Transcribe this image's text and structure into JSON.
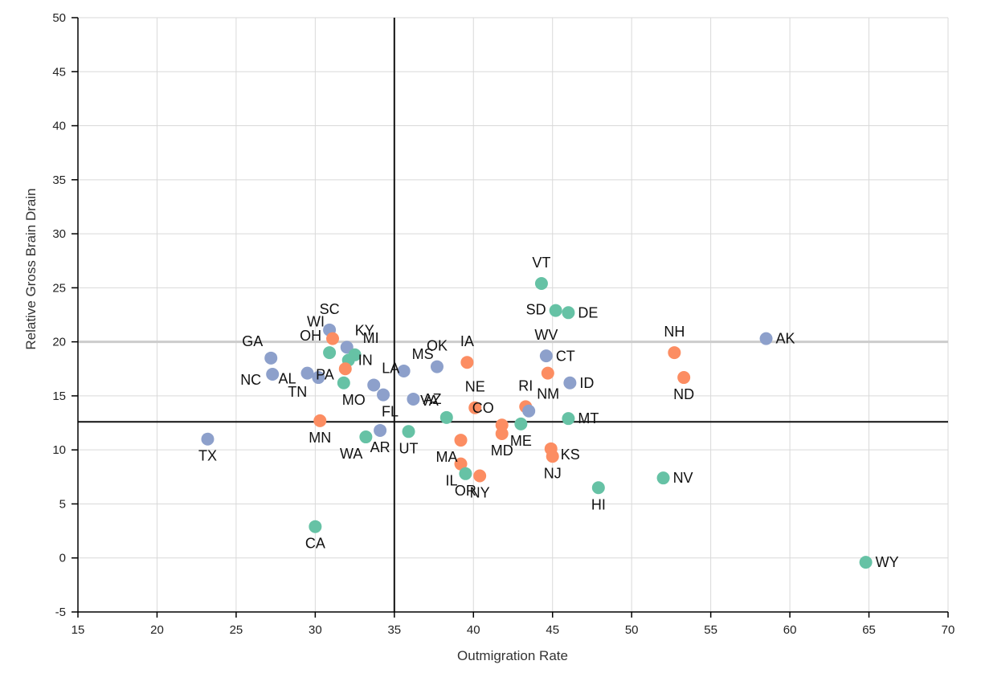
{
  "chart_data": {
    "type": "scatter",
    "xlabel": "Outmigration Rate",
    "ylabel": "Relative Gross Brain Drain",
    "xlim": [
      15,
      70
    ],
    "ylim": [
      -5,
      50
    ],
    "x_ticks": [
      15,
      20,
      25,
      30,
      35,
      40,
      45,
      50,
      55,
      60,
      65,
      70
    ],
    "y_ticks": [
      -5,
      0,
      5,
      10,
      15,
      20,
      25,
      30,
      35,
      40,
      45,
      50
    ],
    "grid": true,
    "reference_lines": {
      "x": 35,
      "y": 12.6,
      "highlight_y": 20
    },
    "group_colors": {
      "blue": "#8da0cb",
      "orange": "#fc8d62",
      "green": "#66c2a5"
    },
    "points": [
      {
        "label": "TX",
        "x": 23.2,
        "y": 11.0,
        "group": "blue",
        "label_pos": "below"
      },
      {
        "label": "GA",
        "x": 27.2,
        "y": 18.5,
        "group": "blue",
        "label_pos": "upper-left"
      },
      {
        "label": "NC",
        "x": 27.3,
        "y": 17.0,
        "group": "blue",
        "label_pos": "lower-left"
      },
      {
        "label": "AL",
        "x": 29.5,
        "y": 17.1,
        "group": "blue",
        "label_pos": "lower-left"
      },
      {
        "label": "TN",
        "x": 30.2,
        "y": 16.7,
        "group": "blue",
        "label_pos": "lower-left-far"
      },
      {
        "label": "SC",
        "x": 30.9,
        "y": 21.1,
        "group": "blue",
        "label_pos": "above"
      },
      {
        "label": "WI",
        "x": 31.1,
        "y": 20.3,
        "group": "orange",
        "label_pos": "upper-left"
      },
      {
        "label": "KY",
        "x": 32.0,
        "y": 19.5,
        "group": "blue",
        "label_pos": "upper-right"
      },
      {
        "label": "MI",
        "x": 32.5,
        "y": 18.8,
        "group": "green",
        "label_pos": "upper-right"
      },
      {
        "label": "OH",
        "x": 30.9,
        "y": 19.0,
        "group": "green",
        "label_pos": "upper-left"
      },
      {
        "label": "IN",
        "x": 32.1,
        "y": 18.3,
        "group": "green",
        "label_pos": "right"
      },
      {
        "label": "PA",
        "x": 31.9,
        "y": 17.5,
        "group": "orange",
        "label_pos": "lower-left"
      },
      {
        "label": "MO",
        "x": 31.8,
        "y": 16.2,
        "group": "green",
        "label_pos": "below-right"
      },
      {
        "label": "MN",
        "x": 30.3,
        "y": 12.7,
        "group": "orange",
        "label_pos": "below"
      },
      {
        "label": "LA",
        "x": 33.7,
        "y": 16.0,
        "group": "blue",
        "label_pos": "upper-right"
      },
      {
        "label": "FL",
        "x": 34.3,
        "y": 15.1,
        "group": "blue",
        "label_pos": "below-right"
      },
      {
        "label": "MS",
        "x": 35.6,
        "y": 17.3,
        "group": "blue",
        "label_pos": "upper-right"
      },
      {
        "label": "OK",
        "x": 37.7,
        "y": 17.7,
        "group": "blue",
        "label_pos": "above"
      },
      {
        "label": "AZ",
        "x": 36.2,
        "y": 14.7,
        "group": "blue",
        "label_pos": "right"
      },
      {
        "label": "WA",
        "x": 33.2,
        "y": 11.2,
        "group": "green",
        "label_pos": "below-left"
      },
      {
        "label": "AR",
        "x": 34.1,
        "y": 11.8,
        "group": "blue",
        "label_pos": "below"
      },
      {
        "label": "UT",
        "x": 35.9,
        "y": 11.7,
        "group": "green",
        "label_pos": "below"
      },
      {
        "label": "VA",
        "x": 38.3,
        "y": 13.0,
        "group": "green",
        "label_pos": "upper-left"
      },
      {
        "label": "IA",
        "x": 39.6,
        "y": 18.1,
        "group": "orange",
        "label_pos": "above"
      },
      {
        "label": "NE",
        "x": 40.1,
        "y": 13.9,
        "group": "orange",
        "label_pos": "above"
      },
      {
        "label": "CO",
        "x": 41.8,
        "y": 12.3,
        "group": "orange",
        "label_pos": "upper-left"
      },
      {
        "label": "MA",
        "x": 39.2,
        "y": 10.9,
        "group": "orange",
        "label_pos": "below-left"
      },
      {
        "label": "MD",
        "x": 41.8,
        "y": 11.5,
        "group": "orange",
        "label_pos": "below"
      },
      {
        "label": "IL",
        "x": 39.2,
        "y": 8.7,
        "group": "orange",
        "label_pos": "below-left"
      },
      {
        "label": "OR",
        "x": 39.5,
        "y": 7.8,
        "group": "green",
        "label_pos": "below"
      },
      {
        "label": "NY",
        "x": 40.4,
        "y": 7.6,
        "group": "orange",
        "label_pos": "below"
      },
      {
        "label": "RI",
        "x": 43.3,
        "y": 14.0,
        "group": "orange",
        "label_pos": "above"
      },
      {
        "label": "NM",
        "x": 43.5,
        "y": 13.6,
        "group": "blue",
        "label_pos": "upper-right"
      },
      {
        "label": "ME",
        "x": 43.0,
        "y": 12.4,
        "group": "green",
        "label_pos": "below"
      },
      {
        "label": "VT",
        "x": 44.3,
        "y": 25.4,
        "group": "green",
        "label_pos": "above"
      },
      {
        "label": "SD",
        "x": 45.2,
        "y": 22.9,
        "group": "green",
        "label_pos": "left"
      },
      {
        "label": "DE",
        "x": 46.0,
        "y": 22.7,
        "group": "green",
        "label_pos": "right"
      },
      {
        "label": "WV",
        "x": 44.6,
        "y": 18.7,
        "group": "blue",
        "label_pos": "above"
      },
      {
        "label": "CT",
        "x": 44.7,
        "y": 17.1,
        "group": "orange",
        "label_pos": "upper-right"
      },
      {
        "label": "ID",
        "x": 46.1,
        "y": 16.2,
        "group": "blue",
        "label_pos": "right"
      },
      {
        "label": "MT",
        "x": 46.0,
        "y": 12.9,
        "group": "green",
        "label_pos": "right"
      },
      {
        "label": "KS",
        "x": 44.9,
        "y": 10.1,
        "group": "orange",
        "label_pos": "lower-right"
      },
      {
        "label": "NJ",
        "x": 45.0,
        "y": 9.4,
        "group": "orange",
        "label_pos": "below"
      },
      {
        "label": "HI",
        "x": 47.9,
        "y": 6.5,
        "group": "green",
        "label_pos": "below"
      },
      {
        "label": "CA",
        "x": 30.0,
        "y": 2.9,
        "group": "green",
        "label_pos": "below"
      },
      {
        "label": "NV",
        "x": 52.0,
        "y": 7.4,
        "group": "green",
        "label_pos": "right"
      },
      {
        "label": "NH",
        "x": 52.7,
        "y": 19.0,
        "group": "orange",
        "label_pos": "above"
      },
      {
        "label": "ND",
        "x": 53.3,
        "y": 16.7,
        "group": "orange",
        "label_pos": "below"
      },
      {
        "label": "AK",
        "x": 58.5,
        "y": 20.3,
        "group": "blue",
        "label_pos": "right"
      },
      {
        "label": "WY",
        "x": 64.8,
        "y": -0.4,
        "group": "green",
        "label_pos": "right"
      }
    ]
  }
}
